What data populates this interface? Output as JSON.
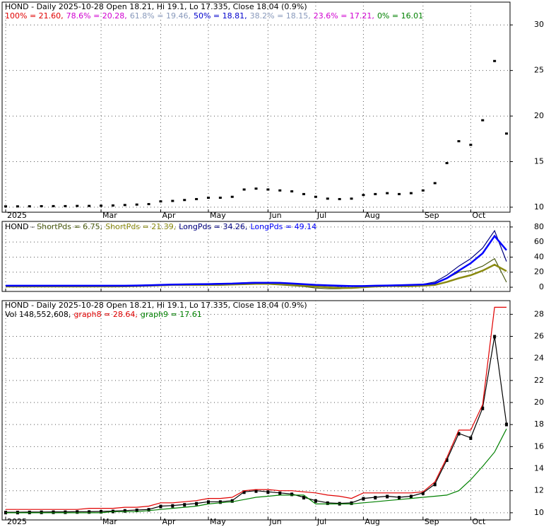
{
  "chart_data": [
    {
      "type": "line",
      "title": "HOND - Daily 2025-10-28 Open 18.21, Hi 19.1, Lo 17.335, Close 18.04 (0.9%)",
      "fib_levels": [
        {
          "text": "100% = 21.60,",
          "color": "#e00000"
        },
        {
          "text": "78.6% = 20.28,",
          "color": "#d000d0"
        },
        {
          "text": "61.8% = 19.46,",
          "color": "#8899bb"
        },
        {
          "text": "50% = 18.81,",
          "color": "#0000cc"
        },
        {
          "text": "38.2% = 18.15,",
          "color": "#8899bb"
        },
        {
          "text": "23.6% = 17.21,",
          "color": "#d000d0"
        },
        {
          "text": "0% = 16.01",
          "color": "#008000"
        }
      ],
      "categories": [
        "2025",
        null,
        null,
        null,
        null,
        null,
        null,
        null,
        "Mar",
        null,
        null,
        null,
        null,
        "Apr",
        null,
        null,
        null,
        "May",
        null,
        null,
        null,
        null,
        "Jun",
        null,
        null,
        null,
        "Jul",
        null,
        null,
        null,
        "Aug",
        null,
        null,
        null,
        null,
        "Sep",
        null,
        null,
        null,
        "Oct",
        null,
        null,
        null
      ],
      "series": [
        {
          "color": "#000000",
          "values": [
            10.05,
            10.05,
            10.06,
            10.07,
            10.08,
            10.08,
            10.1,
            10.1,
            10.12,
            10.15,
            10.2,
            10.25,
            10.3,
            10.6,
            10.65,
            10.75,
            10.85,
            11.0,
            11.0,
            11.1,
            11.9,
            12.0,
            11.9,
            11.8,
            11.7,
            11.4,
            11.1,
            10.9,
            10.85,
            10.9,
            11.3,
            11.4,
            11.5,
            11.4,
            11.5,
            11.8,
            12.6,
            14.8,
            17.2,
            16.8,
            19.5,
            26.0,
            18.04
          ]
        }
      ],
      "ylim": [
        9.45,
        32.5
      ],
      "yticks": [
        10,
        15,
        20,
        25,
        30
      ],
      "grid": true
    },
    {
      "type": "line",
      "title": "HOND -",
      "categories": [
        "2025",
        null,
        null,
        null,
        null,
        null,
        null,
        null,
        "Mar",
        null,
        null,
        null,
        null,
        "Apr",
        null,
        null,
        null,
        "May",
        null,
        null,
        null,
        null,
        "Jun",
        null,
        null,
        null,
        "Jul",
        null,
        null,
        null,
        "Aug",
        null,
        null,
        null,
        null,
        "Sep",
        null,
        null,
        null,
        "Oct",
        null,
        null,
        null
      ],
      "series": [
        {
          "name": "ShortPds = 6.75,",
          "color": "#4a5a10",
          "values": [
            1,
            1,
            1,
            1,
            1,
            1,
            1,
            1,
            1,
            1,
            1.5,
            2,
            2,
            3,
            3,
            3,
            3,
            3,
            3,
            4,
            5,
            5,
            4,
            3,
            2,
            1,
            -1,
            -2,
            -2,
            -1,
            1,
            2,
            2,
            1,
            1,
            2,
            5,
            12,
            20,
            22,
            28,
            38,
            6.75
          ]
        },
        {
          "name": "ShortPds = 21.39,",
          "color": "#8a8a10",
          "values": [
            1,
            1,
            1,
            1,
            1,
            1,
            1,
            1,
            1,
            1,
            1.2,
            1.5,
            2,
            2.5,
            3,
            3,
            3,
            3,
            3,
            3.5,
            4,
            4.5,
            4.5,
            4,
            3,
            2,
            1,
            0,
            -1,
            -1,
            0,
            1,
            1.5,
            1.5,
            1.5,
            2,
            3,
            7,
            12,
            16,
            22,
            30,
            21.39
          ]
        },
        {
          "name": "LongPds = 34.26,",
          "color": "#000080",
          "values": [
            2,
            2,
            2,
            2,
            2,
            2,
            2,
            2,
            2,
            2,
            2,
            2.5,
            3,
            3.5,
            4,
            4,
            4.5,
            4.5,
            5,
            5,
            6,
            6.5,
            6.5,
            6,
            5,
            4,
            3,
            2,
            1,
            1,
            1.5,
            2,
            2.5,
            3,
            3,
            4,
            7,
            16,
            28,
            38,
            52,
            75,
            34.26
          ]
        },
        {
          "name": "LongPds = 49.14",
          "color": "#0000ff",
          "values": [
            2,
            2,
            2,
            2,
            2,
            2,
            2,
            2,
            2,
            2,
            2,
            2.3,
            2.6,
            3,
            3.5,
            3.8,
            4,
            4.2,
            4.5,
            4.8,
            5.5,
            6,
            6,
            5.8,
            5,
            4,
            3,
            2.5,
            2,
            1.5,
            1.5,
            2,
            2.3,
            2.6,
            3,
            3.5,
            5,
            12,
            22,
            32,
            45,
            68,
            49.14
          ]
        }
      ],
      "ylim": [
        -5.6,
        87.4
      ],
      "yticks": [
        0,
        20,
        40,
        60,
        80
      ],
      "grid": true
    },
    {
      "type": "line",
      "title": "HOND - Daily 2025-10-28 Open 18.21, Hi 19.1, Lo 17.335, Close 18.04 (0.9%)",
      "categories": [
        "2025",
        null,
        null,
        null,
        null,
        null,
        null,
        null,
        "Mar",
        null,
        null,
        null,
        null,
        "Apr",
        null,
        null,
        null,
        "May",
        null,
        null,
        null,
        null,
        "Jun",
        null,
        null,
        null,
        "Jul",
        null,
        null,
        null,
        "Aug",
        null,
        null,
        null,
        null,
        "Sep",
        null,
        null,
        null,
        "Oct",
        null,
        null,
        null
      ],
      "volume_text": "Vol 148,552,608,",
      "series": [
        {
          "color": "#000000",
          "values": [
            10.05,
            10.05,
            10.06,
            10.07,
            10.08,
            10.08,
            10.1,
            10.1,
            10.12,
            10.15,
            10.2,
            10.25,
            10.3,
            10.6,
            10.65,
            10.75,
            10.85,
            11.0,
            11.0,
            11.1,
            11.9,
            12.0,
            11.9,
            11.8,
            11.7,
            11.4,
            11.1,
            10.9,
            10.85,
            10.9,
            11.3,
            11.4,
            11.5,
            11.4,
            11.5,
            11.8,
            12.6,
            14.8,
            17.2,
            16.8,
            19.5,
            26.0,
            18.04
          ]
        },
        {
          "name": "graph8 = 28.64,",
          "color": "#e00000",
          "values": [
            10.3,
            10.3,
            10.3,
            10.3,
            10.3,
            10.3,
            10.3,
            10.4,
            10.4,
            10.4,
            10.5,
            10.5,
            10.6,
            10.9,
            10.9,
            11.0,
            11.1,
            11.3,
            11.3,
            11.4,
            12.0,
            12.1,
            12.1,
            12.0,
            12.0,
            11.9,
            11.8,
            11.6,
            11.5,
            11.3,
            11.8,
            11.8,
            11.8,
            11.8,
            11.8,
            11.9,
            12.8,
            15.0,
            17.5,
            17.5,
            19.8,
            28.64,
            28.64
          ]
        },
        {
          "name": "graph9 = 17.61",
          "color": "#008000",
          "values": [
            10.0,
            10.0,
            10.0,
            10.0,
            10.0,
            10.0,
            10.0,
            10.0,
            10.0,
            10.1,
            10.1,
            10.1,
            10.2,
            10.3,
            10.4,
            10.5,
            10.6,
            10.8,
            10.9,
            11.0,
            11.2,
            11.4,
            11.5,
            11.6,
            11.6,
            11.6,
            10.8,
            10.8,
            10.8,
            10.8,
            10.9,
            11.0,
            11.1,
            11.2,
            11.3,
            11.4,
            11.5,
            11.6,
            12.0,
            13.0,
            14.2,
            15.5,
            17.61
          ]
        }
      ],
      "ylim": [
        9.35,
        29.24
      ],
      "yticks": [
        10,
        12,
        14,
        16,
        18,
        20,
        22,
        24,
        26,
        28
      ],
      "grid": true
    }
  ]
}
